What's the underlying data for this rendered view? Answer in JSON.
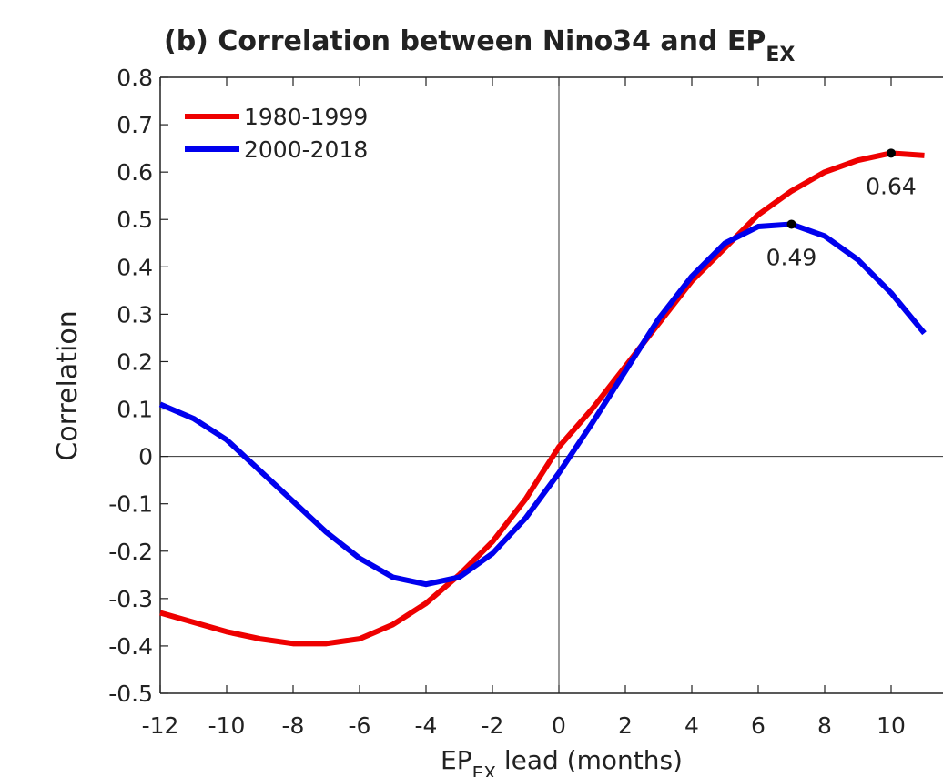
{
  "chart_data": {
    "type": "line",
    "title": "(b)   Correlation between Nino34 and EP",
    "title_subscript": "EX",
    "xlabel": "EP",
    "xlabel_subscript": "EX",
    "xlabel_rest": " lead (months)",
    "ylabel": "Correlation",
    "x": [
      -12,
      -11,
      -10,
      -9,
      -8,
      -7,
      -6,
      -5,
      -4,
      -3,
      -2,
      -1,
      0,
      1,
      2,
      3,
      4,
      5,
      6,
      7,
      8,
      9,
      10,
      11
    ],
    "series": [
      {
        "name": "1980-1999",
        "color": "#ee0000",
        "values": [
          -0.33,
          -0.35,
          -0.37,
          -0.385,
          -0.395,
          -0.395,
          -0.385,
          -0.355,
          -0.31,
          -0.25,
          -0.18,
          -0.09,
          0.02,
          0.1,
          0.19,
          0.28,
          0.37,
          0.44,
          0.51,
          0.56,
          0.6,
          0.625,
          0.64,
          0.635
        ]
      },
      {
        "name": "2000-2018",
        "color": "#0000ee",
        "values": [
          0.11,
          0.08,
          0.035,
          -0.03,
          -0.095,
          -0.16,
          -0.215,
          -0.255,
          -0.27,
          -0.255,
          -0.205,
          -0.13,
          -0.035,
          0.07,
          0.18,
          0.29,
          0.38,
          0.45,
          0.485,
          0.49,
          0.465,
          0.415,
          0.345,
          0.26
        ]
      }
    ],
    "annotations": [
      {
        "x": 10,
        "y": 0.64,
        "text": "0.64"
      },
      {
        "x": 7,
        "y": 0.49,
        "text": "0.49"
      }
    ],
    "xlim": [
      -12,
      12
    ],
    "xticks": [
      -12,
      -10,
      -8,
      -6,
      -4,
      -2,
      0,
      2,
      4,
      6,
      8,
      10,
      12
    ],
    "ylim": [
      -0.5,
      0.8
    ],
    "yticks": [
      -0.5,
      -0.4,
      -0.3,
      -0.2,
      -0.1,
      0,
      0.1,
      0.2,
      0.3,
      0.4,
      0.5,
      0.6,
      0.7,
      0.8
    ],
    "legend": "upper left"
  }
}
